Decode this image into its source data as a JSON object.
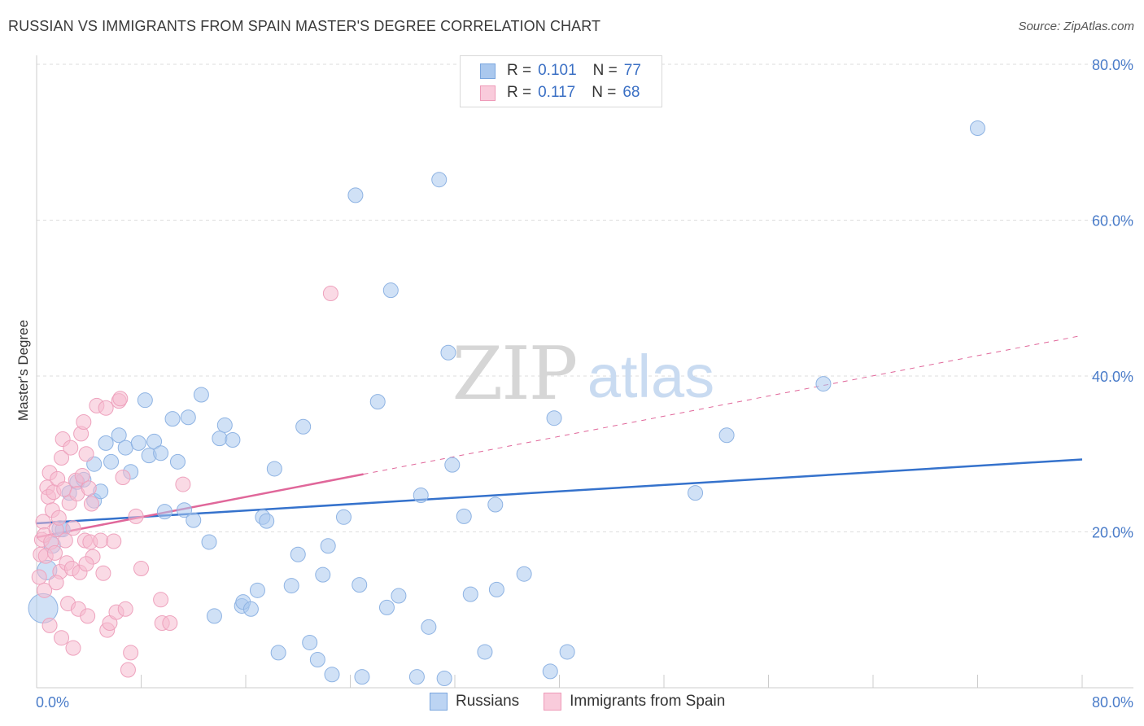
{
  "header": {
    "title": "RUSSIAN VS IMMIGRANTS FROM SPAIN MASTER'S DEGREE CORRELATION CHART",
    "source": "Source: ZipAtlas.com"
  },
  "colors": {
    "blue_fill": "#aac8ee",
    "blue_line": "#3572cc",
    "pink_fill": "#f6bcd0",
    "pink_line": "#e0679a",
    "axis_text": "#4a7cc9",
    "grid": "#dddddd"
  },
  "legend": {
    "r_label": "R =",
    "n_label": "N =",
    "series": [
      {
        "r": "0.101",
        "n": "77"
      },
      {
        "r": "0.117",
        "n": "68"
      }
    ]
  },
  "watermark": {
    "zip": "ZIP",
    "atlas": "atlas"
  },
  "chart_data": {
    "type": "scatter",
    "xlabel": "",
    "ylabel": "Master's Degree",
    "xlim": [
      0,
      80
    ],
    "ylim": [
      0,
      80
    ],
    "x_tick_labels": [
      "0.0%",
      "80.0%"
    ],
    "y_ticks": [
      20,
      40,
      60,
      80
    ],
    "y_tick_labels": [
      "20.0%",
      "40.0%",
      "60.0%",
      "80.0%"
    ],
    "legend_position": "top-center",
    "series": [
      {
        "name": "Russians",
        "trend": {
          "x0": 0,
          "y0": 21.1,
          "x1": 80,
          "y1": 29.3
        },
        "points": [
          [
            0.5,
            10.2,
            18
          ],
          [
            0.8,
            15.1,
            12
          ],
          [
            1.2,
            18.3,
            10
          ],
          [
            1.8,
            20.4,
            10
          ],
          [
            2.5,
            25.0,
            9
          ],
          [
            3.1,
            26.4,
            9
          ],
          [
            3.6,
            26.7,
            9
          ],
          [
            4.4,
            24.0,
            9
          ],
          [
            4.9,
            25.2,
            9
          ],
          [
            4.4,
            28.7,
            9
          ],
          [
            5.3,
            31.4,
            9
          ],
          [
            5.7,
            29.0,
            9
          ],
          [
            6.3,
            32.4,
            9
          ],
          [
            6.8,
            30.8,
            9
          ],
          [
            7.2,
            27.7,
            9
          ],
          [
            7.8,
            31.4,
            9
          ],
          [
            8.3,
            36.9,
            9
          ],
          [
            8.6,
            29.8,
            9
          ],
          [
            9.0,
            31.6,
            9
          ],
          [
            9.5,
            30.1,
            9
          ],
          [
            9.8,
            22.6,
            9
          ],
          [
            10.4,
            34.5,
            9
          ],
          [
            10.8,
            29.0,
            9
          ],
          [
            11.3,
            22.8,
            9
          ],
          [
            11.6,
            34.7,
            9
          ],
          [
            12.0,
            21.5,
            9
          ],
          [
            12.6,
            37.6,
            9
          ],
          [
            13.2,
            18.7,
            9
          ],
          [
            13.6,
            9.2,
            9
          ],
          [
            14.0,
            32.0,
            9
          ],
          [
            14.4,
            33.7,
            9
          ],
          [
            15.0,
            31.8,
            9
          ],
          [
            15.7,
            10.5,
            9
          ],
          [
            15.8,
            11.0,
            9
          ],
          [
            16.4,
            10.1,
            9
          ],
          [
            16.9,
            12.5,
            9
          ],
          [
            17.3,
            21.9,
            9
          ],
          [
            17.6,
            21.4,
            9
          ],
          [
            18.2,
            28.1,
            9
          ],
          [
            18.5,
            4.5,
            9
          ],
          [
            19.5,
            13.1,
            9
          ],
          [
            20.0,
            17.1,
            9
          ],
          [
            20.4,
            33.5,
            9
          ],
          [
            20.9,
            5.8,
            9
          ],
          [
            21.5,
            3.6,
            9
          ],
          [
            21.9,
            14.5,
            9
          ],
          [
            22.3,
            18.2,
            9
          ],
          [
            22.6,
            1.7,
            9
          ],
          [
            23.5,
            21.9,
            9
          ],
          [
            24.4,
            63.2,
            9
          ],
          [
            24.7,
            13.2,
            9
          ],
          [
            24.9,
            1.4,
            9
          ],
          [
            26.1,
            36.7,
            9
          ],
          [
            26.8,
            10.3,
            9
          ],
          [
            27.1,
            51.0,
            9
          ],
          [
            27.7,
            11.8,
            9
          ],
          [
            29.1,
            1.4,
            9
          ],
          [
            29.4,
            24.7,
            9
          ],
          [
            30.0,
            7.8,
            9
          ],
          [
            30.8,
            65.2,
            9
          ],
          [
            31.2,
            1.2,
            9
          ],
          [
            31.5,
            43.0,
            9
          ],
          [
            31.8,
            28.6,
            9
          ],
          [
            32.7,
            22.0,
            9
          ],
          [
            33.2,
            12.0,
            9
          ],
          [
            34.3,
            4.6,
            9
          ],
          [
            35.1,
            23.5,
            9
          ],
          [
            35.2,
            12.6,
            9
          ],
          [
            37.3,
            14.6,
            9
          ],
          [
            39.3,
            2.1,
            9
          ],
          [
            39.6,
            34.6,
            9
          ],
          [
            40.6,
            4.6,
            9
          ],
          [
            50.4,
            25.0,
            9
          ],
          [
            52.8,
            32.4,
            9
          ],
          [
            60.2,
            39.0,
            9
          ],
          [
            72.0,
            71.8,
            9
          ],
          [
            2.0,
            20.3,
            9
          ]
        ]
      },
      {
        "name": "Immigrants from Spain",
        "trend": {
          "x0": 0,
          "y0": 19.3,
          "x1": 25,
          "y1": 27.4,
          "dash_x1": 80,
          "dash_y1": 45.2
        },
        "points": [
          [
            0.2,
            14.2,
            9
          ],
          [
            0.3,
            17.1,
            9
          ],
          [
            0.4,
            19.0,
            9
          ],
          [
            0.5,
            21.3,
            9
          ],
          [
            0.6,
            19.6,
            9
          ],
          [
            0.7,
            16.9,
            9
          ],
          [
            0.8,
            25.7,
            9
          ],
          [
            0.9,
            24.5,
            9
          ],
          [
            1.0,
            27.6,
            9
          ],
          [
            1.1,
            18.7,
            9
          ],
          [
            1.2,
            22.8,
            9
          ],
          [
            1.3,
            25.1,
            9
          ],
          [
            1.4,
            17.3,
            9
          ],
          [
            1.5,
            20.3,
            9
          ],
          [
            1.6,
            26.8,
            9
          ],
          [
            1.7,
            21.8,
            9
          ],
          [
            1.8,
            14.9,
            9
          ],
          [
            1.9,
            29.5,
            9
          ],
          [
            1.9,
            6.4,
            9
          ],
          [
            2.0,
            31.9,
            9
          ],
          [
            2.1,
            25.5,
            9
          ],
          [
            2.2,
            18.9,
            9
          ],
          [
            2.3,
            16.0,
            9
          ],
          [
            2.4,
            10.8,
            9
          ],
          [
            2.5,
            23.7,
            9
          ],
          [
            2.6,
            30.8,
            9
          ],
          [
            2.7,
            15.3,
            9
          ],
          [
            2.8,
            20.5,
            9
          ],
          [
            2.8,
            5.1,
            9
          ],
          [
            3.0,
            26.6,
            9
          ],
          [
            3.1,
            24.9,
            9
          ],
          [
            3.2,
            10.1,
            9
          ],
          [
            3.3,
            14.8,
            9
          ],
          [
            3.4,
            32.6,
            9
          ],
          [
            3.5,
            27.2,
            9
          ],
          [
            3.6,
            34.1,
            9
          ],
          [
            3.7,
            18.9,
            9
          ],
          [
            3.8,
            30.0,
            9
          ],
          [
            3.9,
            9.2,
            9
          ],
          [
            4.0,
            25.6,
            9
          ],
          [
            4.1,
            18.7,
            9
          ],
          [
            4.2,
            23.6,
            9
          ],
          [
            4.3,
            16.8,
            9
          ],
          [
            4.6,
            36.2,
            9
          ],
          [
            4.9,
            18.9,
            9
          ],
          [
            5.1,
            14.7,
            9
          ],
          [
            5.3,
            35.9,
            9
          ],
          [
            5.4,
            7.4,
            9
          ],
          [
            5.6,
            8.3,
            9
          ],
          [
            5.9,
            18.8,
            9
          ],
          [
            6.1,
            9.7,
            9
          ],
          [
            6.3,
            36.8,
            9
          ],
          [
            6.4,
            37.1,
            9
          ],
          [
            6.6,
            27.0,
            9
          ],
          [
            6.8,
            10.1,
            9
          ],
          [
            7.0,
            2.3,
            9
          ],
          [
            7.2,
            4.5,
            9
          ],
          [
            7.6,
            22.0,
            9
          ],
          [
            8.0,
            15.3,
            9
          ],
          [
            9.5,
            11.3,
            9
          ],
          [
            9.6,
            8.3,
            9
          ],
          [
            10.2,
            8.3,
            9
          ],
          [
            11.2,
            26.1,
            9
          ],
          [
            22.5,
            50.6,
            9
          ],
          [
            1.0,
            8.0,
            9
          ],
          [
            0.6,
            12.5,
            9
          ],
          [
            1.5,
            13.5,
            9
          ],
          [
            3.8,
            15.9,
            9
          ]
        ]
      }
    ]
  }
}
